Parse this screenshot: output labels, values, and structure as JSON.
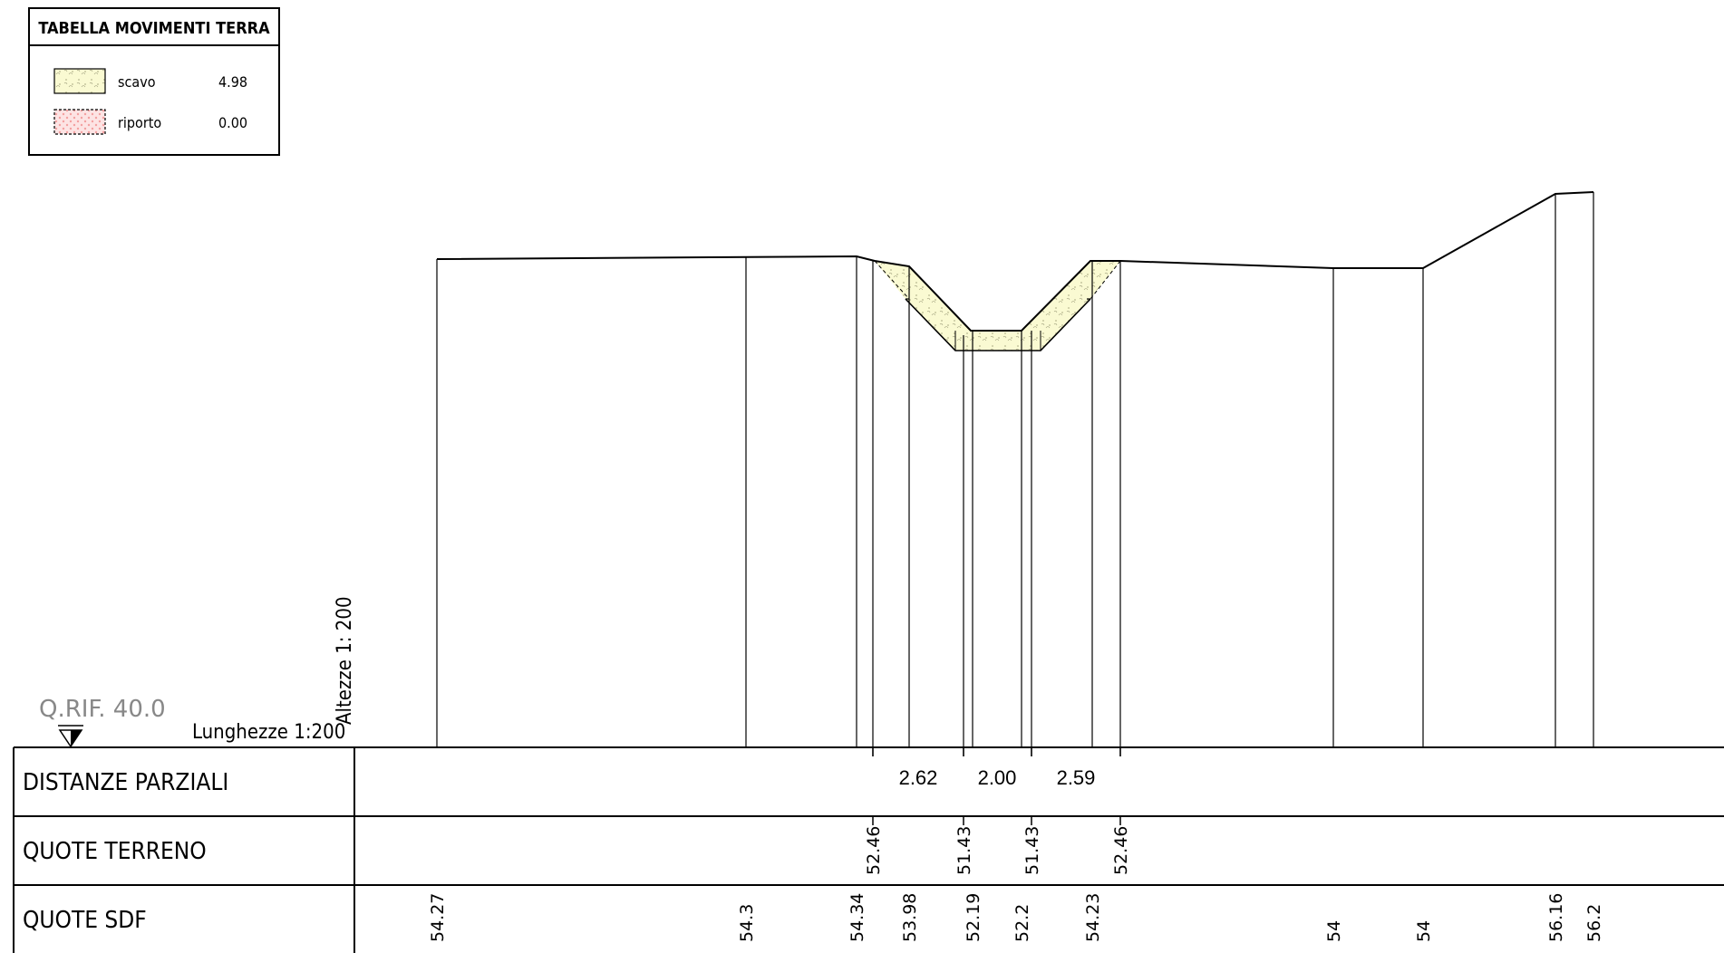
{
  "legend": {
    "title": "TABELLA  MOVIMENTI  TERRA",
    "items": [
      {
        "label": "scavo",
        "value": "4.98",
        "fill": "#fafad2"
      },
      {
        "label": "riporto",
        "value": "0.00",
        "fill": "#fde4e4"
      }
    ]
  },
  "reference": {
    "label": "Q.RIF.  40.0"
  },
  "scales": {
    "horizontal": "Lunghezze  1:200",
    "vertical": "Altezze  1: 200"
  },
  "table": {
    "rows": [
      {
        "label": "DISTANZE  PARZIALI"
      },
      {
        "label": "QUOTE  TERRENO"
      },
      {
        "label": "QUOTE  SDF"
      }
    ],
    "distanze_parziali": [
      "2.62",
      "2.00",
      "2.59"
    ],
    "quote_terreno": [
      "52.46",
      "51.43",
      "51.43",
      "52.46"
    ],
    "quote_sdf": [
      "54.27",
      "54.3",
      "54.34",
      "53.98",
      "52.19",
      "52.2",
      "54.23",
      "54",
      "54",
      "56.16",
      "56.2"
    ]
  },
  "colors": {
    "line": "#000000",
    "scavo_fill": "#fafad2",
    "riporto_fill": "#fde4e4",
    "reference_text": "#888888"
  }
}
